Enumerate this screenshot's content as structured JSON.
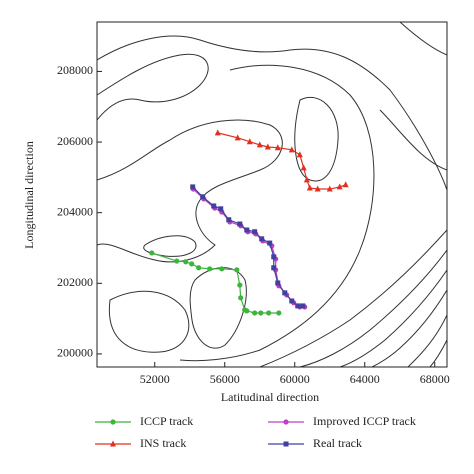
{
  "chart_data": {
    "type": "line",
    "x_label": "Latitudinal direction",
    "y_label": "Longitudinal direction",
    "xlim": [
      48700,
      68700
    ],
    "ylim": [
      199630,
      209400
    ],
    "xticks": [
      52000,
      56000,
      60000,
      64000,
      68000
    ],
    "yticks": [
      200000,
      202000,
      204000,
      206000,
      208000
    ],
    "series": [
      {
        "name": "ICCP track",
        "color": "#3db53d",
        "marker": "circle",
        "x": [
          51830,
          53260,
          53770,
          54110,
          54510,
          55140,
          55830,
          56690,
          56860,
          56910,
          57140,
          57260,
          57710,
          58060,
          58510,
          59090
        ],
        "y": [
          202860,
          202630,
          202610,
          202550,
          202440,
          202410,
          202410,
          202380,
          201950,
          201590,
          201250,
          201220,
          201160,
          201160,
          201160,
          201160
        ]
      },
      {
        "name": "Improved ICCP track",
        "color": "#c040c0",
        "marker": "circle",
        "x": [
          54200,
          54800,
          55430,
          55830,
          56290,
          56920,
          57320,
          57770,
          58170,
          58690,
          58910,
          58910,
          59090,
          59540,
          59940,
          60290,
          60570
        ],
        "y": [
          204670,
          204390,
          204130,
          204020,
          203740,
          203630,
          203460,
          203400,
          203200,
          203060,
          202690,
          202380,
          201930,
          201670,
          201450,
          201330,
          201330
        ]
      },
      {
        "name": "INS track",
        "color": "#e03020",
        "marker": "triangle",
        "x": [
          55600,
          56740,
          57430,
          58000,
          58460,
          59030,
          59830,
          60290,
          60510,
          60690,
          60860,
          61310,
          62000,
          62570,
          62910
        ],
        "y": [
          206260,
          206120,
          206010,
          205920,
          205860,
          205840,
          205780,
          205640,
          205270,
          204930,
          204700,
          204670,
          204670,
          204730,
          204790
        ]
      },
      {
        "name": "Real track",
        "color": "#4040a0",
        "marker": "square",
        "x": [
          54170,
          54740,
          55370,
          55770,
          56230,
          56860,
          57260,
          57710,
          58110,
          58570,
          58800,
          58800,
          59030,
          59430,
          59830,
          60170,
          60460
        ],
        "y": [
          204730,
          204450,
          204190,
          204110,
          203800,
          203680,
          203510,
          203460,
          203260,
          203140,
          202750,
          202440,
          202010,
          201730,
          201500,
          201360,
          201360
        ]
      }
    ]
  }
}
